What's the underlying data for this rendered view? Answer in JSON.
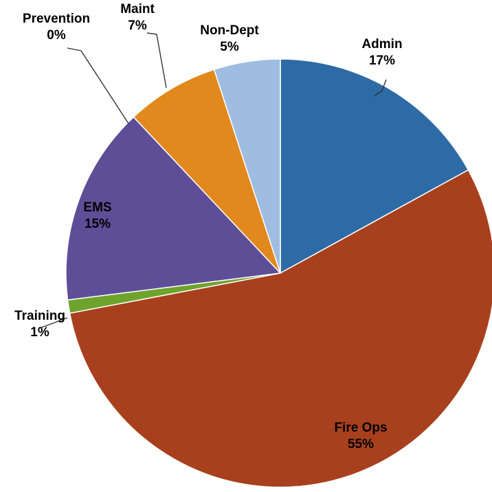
{
  "chart_data": {
    "type": "pie",
    "title": "",
    "slices": [
      {
        "label": "Admin",
        "value": 17,
        "value_label": "17%",
        "color": "#2E6AA6"
      },
      {
        "label": "Fire Ops",
        "value": 55,
        "value_label": "55%",
        "color": "#A8401E"
      },
      {
        "label": "Training",
        "value": 1,
        "value_label": "1%",
        "color": "#6EA32E"
      },
      {
        "label": "EMS",
        "value": 15,
        "value_label": "15%",
        "color": "#5E4E98"
      },
      {
        "label": "Prevention",
        "value": 0,
        "value_label": "0%",
        "color": "#3F8FA8"
      },
      {
        "label": "Maint",
        "value": 7,
        "value_label": "7%",
        "color": "#E1891C"
      },
      {
        "label": "Non-Dept",
        "value": 5,
        "value_label": "5%",
        "color": "#9EBDE0"
      }
    ],
    "start_angle_deg": 0,
    "direction": "clockwise",
    "legend": "none"
  }
}
